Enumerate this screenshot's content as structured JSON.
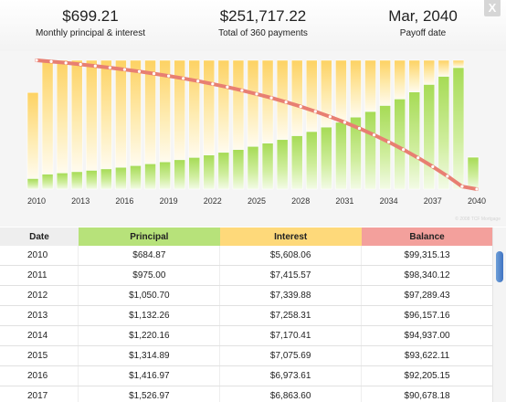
{
  "summary": {
    "monthly_value": "$699.21",
    "monthly_label": "Monthly principal & interest",
    "total_value": "$251,717.22",
    "total_label": "Total of 360 payments",
    "payoff_value": "Mar, 2040",
    "payoff_label": "Payoff date"
  },
  "close_label": "X",
  "watermark": "© 2008 TCF Mortgage",
  "colors": {
    "principal": "#b7e27a",
    "interest": "#fed97a",
    "balance": "#f3a09c",
    "balance_line": "#e87f72"
  },
  "chart_data": {
    "type": "bar",
    "stacked": true,
    "x_tick_labels": [
      "2010",
      "2013",
      "2016",
      "2019",
      "2022",
      "2025",
      "2028",
      "2031",
      "2034",
      "2037",
      "2040"
    ],
    "categories": [
      "2010",
      "2011",
      "2012",
      "2013",
      "2014",
      "2015",
      "2016",
      "2017",
      "2018",
      "2019",
      "2020",
      "2021",
      "2022",
      "2023",
      "2024",
      "2025",
      "2026",
      "2027",
      "2028",
      "2029",
      "2030",
      "2031",
      "2032",
      "2033",
      "2034",
      "2035",
      "2036",
      "2037",
      "2038",
      "2039",
      "2040"
    ],
    "series": [
      {
        "name": "Principal",
        "values": [
          684.87,
          975.0,
          1050.7,
          1132.26,
          1220.16,
          1314.89,
          1416.97,
          1526.97,
          1645.5,
          1773.2,
          1911.0,
          2059.0,
          2219.0,
          2391.0,
          2577.0,
          2777.0,
          2993.0,
          3225.0,
          3476.0,
          3746.0,
          4037.0,
          4350.0,
          4688.0,
          5052.0,
          5444.0,
          5867.0,
          6322.0,
          6813.0,
          7342.0,
          7912.0,
          2077.0
        ]
      },
      {
        "name": "Interest",
        "values": [
          5608.06,
          7415.57,
          7339.88,
          7258.31,
          7170.41,
          7075.69,
          6973.61,
          6863.6,
          6745.0,
          6617.3,
          6479.5,
          6331.5,
          6171.5,
          5999.5,
          5813.5,
          5613.5,
          5397.5,
          5165.5,
          4914.5,
          4644.5,
          4353.5,
          4040.5,
          3702.5,
          3338.5,
          2946.5,
          2523.5,
          2068.5,
          1577.5,
          1048.5,
          478.5,
          20.0
        ]
      },
      {
        "name": "Balance",
        "values": [
          99315.13,
          98340.12,
          97289.43,
          96157.16,
          94937.0,
          93622.11,
          92205.15,
          90678.18,
          89032.7,
          87259.5,
          85348.5,
          83289.5,
          81070.5,
          78679.5,
          76102.5,
          73325.5,
          70332.5,
          67107.5,
          63631.5,
          59885.5,
          55848.5,
          51498.5,
          46810.5,
          41758.5,
          36314.5,
          30447.5,
          24125.5,
          17312.5,
          9970.5,
          2058.5,
          0
        ]
      }
    ]
  },
  "table": {
    "headers": {
      "date": "Date",
      "principal": "Principal",
      "interest": "Interest",
      "balance": "Balance"
    },
    "rows": [
      {
        "date": "2010",
        "principal": "$684.87",
        "interest": "$5,608.06",
        "balance": "$99,315.13"
      },
      {
        "date": "2011",
        "principal": "$975.00",
        "interest": "$7,415.57",
        "balance": "$98,340.12"
      },
      {
        "date": "2012",
        "principal": "$1,050.70",
        "interest": "$7,339.88",
        "balance": "$97,289.43"
      },
      {
        "date": "2013",
        "principal": "$1,132.26",
        "interest": "$7,258.31",
        "balance": "$96,157.16"
      },
      {
        "date": "2014",
        "principal": "$1,220.16",
        "interest": "$7,170.41",
        "balance": "$94,937.00"
      },
      {
        "date": "2015",
        "principal": "$1,314.89",
        "interest": "$7,075.69",
        "balance": "$93,622.11"
      },
      {
        "date": "2016",
        "principal": "$1,416.97",
        "interest": "$6,973.61",
        "balance": "$92,205.15"
      },
      {
        "date": "2017",
        "principal": "$1,526.97",
        "interest": "$6,863.60",
        "balance": "$90,678.18"
      }
    ]
  }
}
